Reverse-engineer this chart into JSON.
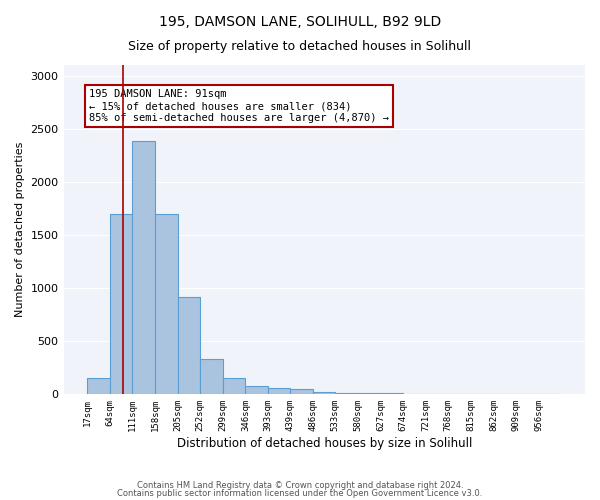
{
  "title1": "195, DAMSON LANE, SOLIHULL, B92 9LD",
  "title2": "Size of property relative to detached houses in Solihull",
  "xlabel": "Distribution of detached houses by size in Solihull",
  "ylabel": "Number of detached properties",
  "bar_color": "#aac4e0",
  "bar_edge_color": "#5a9fd4",
  "bar_heights": [
    150,
    1700,
    2380,
    1700,
    920,
    330,
    155,
    80,
    55,
    50,
    25,
    15,
    10,
    8,
    5,
    4,
    3,
    2,
    2,
    1,
    1
  ],
  "bin_edges": [
    17,
    64,
    111,
    158,
    205,
    252,
    299,
    346,
    393,
    439,
    486,
    533,
    580,
    627,
    674,
    721,
    768,
    815,
    862,
    909,
    956,
    1003
  ],
  "x_tick_labels": [
    "17sqm",
    "64sqm",
    "111sqm",
    "158sqm",
    "205sqm",
    "252sqm",
    "299sqm",
    "346sqm",
    "393sqm",
    "439sqm",
    "486sqm",
    "533sqm",
    "580sqm",
    "627sqm",
    "674sqm",
    "721sqm",
    "768sqm",
    "815sqm",
    "862sqm",
    "909sqm",
    "956sqm"
  ],
  "vline_x": 91,
  "vline_color": "#aa0000",
  "annotation_text": "195 DAMSON LANE: 91sqm\n← 15% of detached houses are smaller (834)\n85% of semi-detached houses are larger (4,870) →",
  "annotation_box_color": "white",
  "annotation_box_edge": "#aa0000",
  "ylim": [
    0,
    3100
  ],
  "yticks": [
    0,
    500,
    1000,
    1500,
    2000,
    2500,
    3000
  ],
  "background_color": "#f0f4fa",
  "footer1": "Contains HM Land Registry data © Crown copyright and database right 2024.",
  "footer2": "Contains public sector information licensed under the Open Government Licence v3.0."
}
